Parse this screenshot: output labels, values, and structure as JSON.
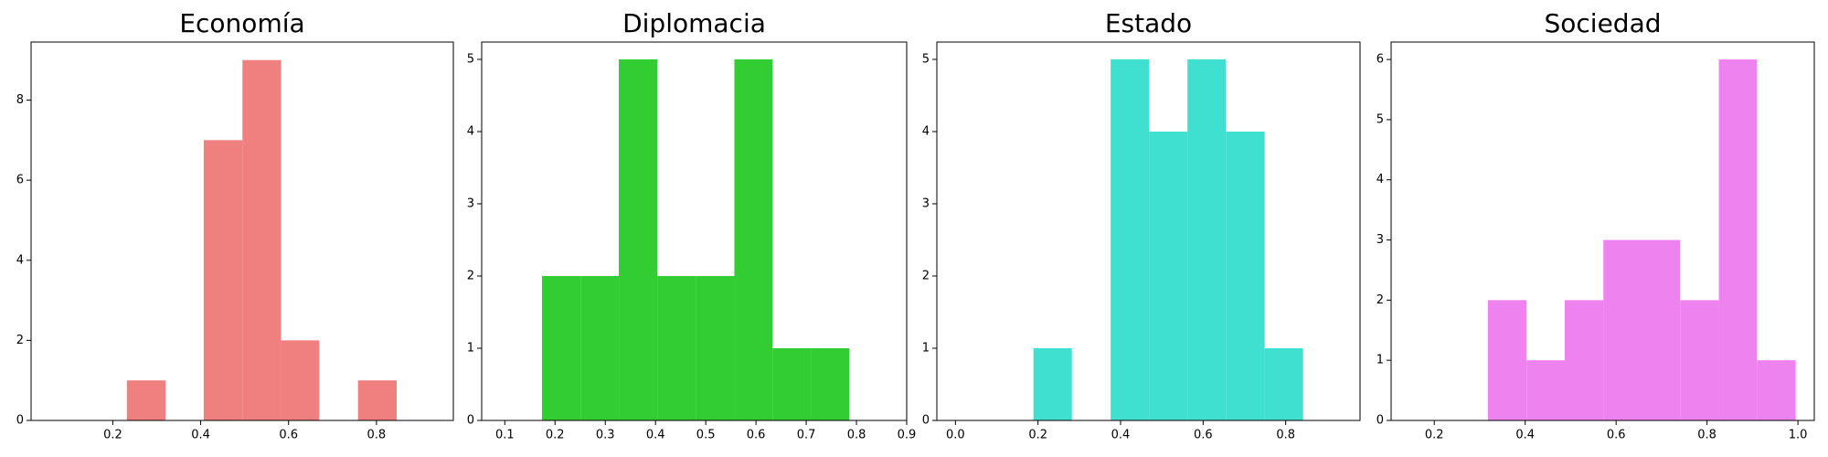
{
  "chart_data": [
    {
      "type": "histogram",
      "title": "Economía",
      "color": "#f08080",
      "bins": [
        0.232,
        0.32,
        0.407,
        0.495,
        0.583,
        0.67,
        0.758,
        0.846
      ],
      "values": [
        1,
        0,
        7,
        9,
        2,
        0,
        1
      ],
      "xlim": [
        0.014,
        0.975
      ],
      "xticks": [
        0.2,
        0.4,
        0.6,
        0.8
      ],
      "ylim": [
        0,
        9.45
      ],
      "yticks": [
        0,
        2,
        4,
        6,
        8
      ]
    },
    {
      "type": "histogram",
      "title": "Diplomacia",
      "color": "#32cd32",
      "bins": [
        0.174,
        0.251,
        0.327,
        0.404,
        0.48,
        0.557,
        0.633,
        0.71,
        0.786
      ],
      "values": [
        2,
        2,
        5,
        2,
        2,
        5,
        1,
        1
      ],
      "xlim": [
        0.054,
        0.9
      ],
      "xticks": [
        0.1,
        0.2,
        0.3,
        0.4,
        0.5,
        0.6,
        0.7,
        0.8,
        0.9
      ],
      "ylim": [
        0,
        5.24
      ],
      "yticks": [
        0,
        1,
        2,
        3,
        4,
        5
      ]
    },
    {
      "type": "histogram",
      "title": "Estado",
      "color": "#40e0d0",
      "bins": [
        0.189,
        0.282,
        0.376,
        0.469,
        0.562,
        0.655,
        0.749,
        0.842
      ],
      "values": [
        1,
        0,
        5,
        4,
        5,
        4,
        1
      ],
      "xlim": [
        -0.045,
        0.98
      ],
      "xticks": [
        {
          "value": 0,
          "label": "0.0"
        },
        0.2,
        0.4,
        0.6,
        0.8
      ],
      "ylim": [
        0,
        5.24
      ],
      "yticks": [
        0,
        1,
        2,
        3,
        4,
        5
      ]
    },
    {
      "type": "histogram",
      "title": "Sociedad",
      "color": "#ee82ee",
      "bins": [
        0.318,
        0.403,
        0.487,
        0.572,
        0.656,
        0.741,
        0.826,
        0.91,
        0.995
      ],
      "values": [
        2,
        1,
        2,
        3,
        3,
        2,
        6,
        1
      ],
      "xlim": [
        0.105,
        1.036
      ],
      "xticks": [
        0.2,
        0.4,
        0.6,
        0.8,
        {
          "value": 1,
          "label": "1.0"
        }
      ],
      "ylim": [
        0,
        6.29
      ],
      "yticks": [
        0,
        1,
        2,
        3,
        4,
        5,
        6
      ]
    }
  ]
}
